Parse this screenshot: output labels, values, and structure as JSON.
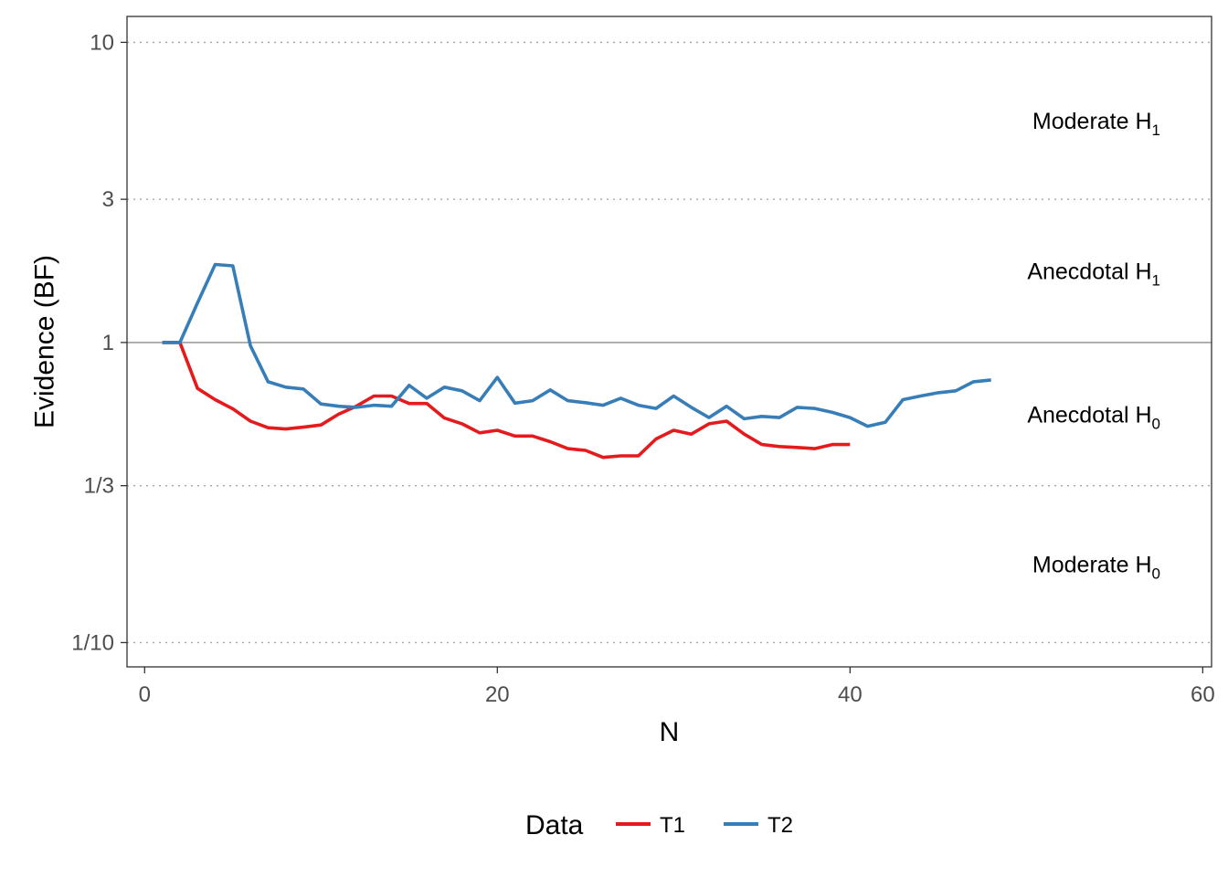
{
  "chart_data": {
    "type": "line",
    "xlabel": "N",
    "ylabel": "Evidence (BF)",
    "xlim": [
      -1,
      60.5
    ],
    "ylim": [
      0.083,
      12.2
    ],
    "y_scale": "log",
    "x_ticks": [
      0,
      20,
      40,
      60
    ],
    "y_ticks": [
      {
        "value": 10,
        "label": "10",
        "style": "dotted"
      },
      {
        "value": 3,
        "label": "3",
        "style": "dotted"
      },
      {
        "value": 1,
        "label": "1",
        "style": "solid"
      },
      {
        "value": 0.3333,
        "label": "1/3",
        "style": "dotted"
      },
      {
        "value": 0.1,
        "label": "1/10",
        "style": "dotted"
      }
    ],
    "region_labels": [
      {
        "text": "Moderate H",
        "sub": "1",
        "x": 57,
        "y": 5.48
      },
      {
        "text": "Anecdotal H",
        "sub": "1",
        "x": 57,
        "y": 1.73
      },
      {
        "text": "Anecdotal H",
        "sub": "0",
        "x": 57,
        "y": 0.577
      },
      {
        "text": "Moderate H",
        "sub": "0",
        "x": 57,
        "y": 0.1826
      }
    ],
    "legend": {
      "title": "Data",
      "position": "bottom"
    },
    "series": [
      {
        "name": "T1",
        "color": "#E41A1C",
        "x": [
          1,
          2,
          3,
          4,
          5,
          6,
          7,
          8,
          9,
          10,
          11,
          12,
          13,
          14,
          15,
          16,
          17,
          18,
          19,
          20,
          21,
          22,
          23,
          24,
          25,
          26,
          27,
          28,
          29,
          30,
          31,
          32,
          33,
          34,
          35,
          36,
          37,
          38,
          39,
          40
        ],
        "y": [
          1.0,
          1.0,
          0.703,
          0.645,
          0.601,
          0.547,
          0.52,
          0.515,
          0.522,
          0.531,
          0.577,
          0.613,
          0.663,
          0.663,
          0.626,
          0.626,
          0.56,
          0.536,
          0.5,
          0.51,
          0.488,
          0.488,
          0.467,
          0.443,
          0.437,
          0.414,
          0.419,
          0.419,
          0.477,
          0.51,
          0.495,
          0.536,
          0.547,
          0.495,
          0.457,
          0.45,
          0.447,
          0.443,
          0.457,
          0.457
        ]
      },
      {
        "name": "T2",
        "color": "#377EB8",
        "x": [
          1,
          2,
          3,
          4,
          5,
          6,
          7,
          8,
          9,
          10,
          11,
          12,
          13,
          14,
          15,
          16,
          17,
          18,
          19,
          20,
          21,
          22,
          23,
          24,
          25,
          26,
          27,
          28,
          29,
          30,
          31,
          32,
          33,
          34,
          35,
          36,
          37,
          38,
          39,
          40,
          41,
          42,
          43,
          44,
          45,
          46,
          47,
          48
        ],
        "y": [
          1.0,
          1.0,
          1.355,
          1.82,
          1.8,
          0.975,
          0.74,
          0.71,
          0.7,
          0.624,
          0.613,
          0.608,
          0.618,
          0.613,
          0.72,
          0.652,
          0.71,
          0.69,
          0.64,
          0.765,
          0.628,
          0.64,
          0.695,
          0.64,
          0.63,
          0.618,
          0.652,
          0.618,
          0.603,
          0.663,
          0.608,
          0.562,
          0.613,
          0.557,
          0.567,
          0.562,
          0.608,
          0.603,
          0.585,
          0.562,
          0.526,
          0.542,
          0.645,
          0.663,
          0.68,
          0.69,
          0.74,
          0.75
        ]
      }
    ]
  }
}
